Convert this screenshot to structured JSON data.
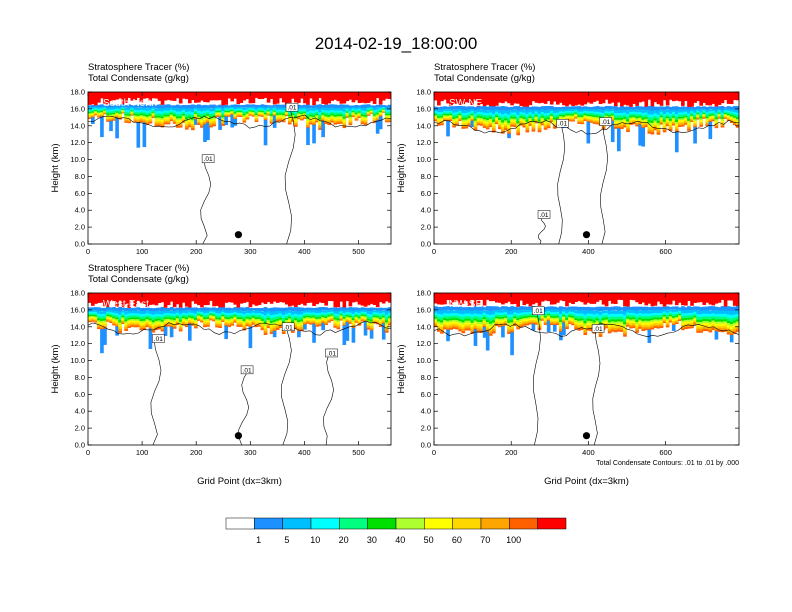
{
  "figure": {
    "title": "2014-02-19_18:00:00",
    "contour_note": "Total Condensate Contours: .01 to .01 by .000"
  },
  "chart_data": [
    {
      "type": "heatmap",
      "subtitle_1": "Stratosphere Tracer   (%)",
      "subtitle_2": "Total Condensate   (g/kg)",
      "region": "South-North",
      "ylabel": "Height (km)",
      "xlabel": "",
      "xlim": [
        0,
        560
      ],
      "ylim": [
        0,
        18
      ],
      "x_ticks": [
        0,
        100,
        200,
        300,
        400,
        500
      ],
      "y_ticks": [
        "0.0",
        "2.0",
        "4.0",
        "6.0",
        "8.0",
        "10.0",
        "12.0",
        "14.0",
        "16.0",
        "18.0"
      ],
      "contour_labels": [
        {
          "text": ".01",
          "x": 377,
          "y": 16.2
        },
        {
          "text": ".01",
          "x": 222,
          "y": 10.1
        }
      ],
      "marker": {
        "x": 278,
        "y": 1.1
      },
      "tracer_base_km": 15.2,
      "dense_top_km": 16.4
    },
    {
      "type": "heatmap",
      "subtitle_1": "Stratosphere Tracer   (%)",
      "subtitle_2": "Total Condensate   (g/kg)",
      "region": "SW-NE",
      "ylabel": "Height (km)",
      "xlabel": "",
      "xlim": [
        0,
        790
      ],
      "ylim": [
        0,
        18
      ],
      "x_ticks": [
        0,
        200,
        400,
        600
      ],
      "y_ticks": [
        "0.0",
        "2.0",
        "4.0",
        "6.0",
        "8.0",
        "10.0",
        "12.0",
        "14.0",
        "16.0",
        "18.0"
      ],
      "contour_labels": [
        {
          "text": ".01",
          "x": 333,
          "y": 14.3
        },
        {
          "text": ".01",
          "x": 445,
          "y": 14.5
        },
        {
          "text": ".01",
          "x": 285,
          "y": 3.5
        }
      ],
      "marker": {
        "x": 395,
        "y": 1.1
      },
      "tracer_base_km": 14.6,
      "dense_top_km": 16.2
    },
    {
      "type": "heatmap",
      "subtitle_1": "Stratosphere Tracer   (%)",
      "subtitle_2": "Total Condensate   (g/kg)",
      "region": "West-East",
      "ylabel": "Height (km)",
      "xlabel": "Grid Point (dx=3km)",
      "xlim": [
        0,
        560
      ],
      "ylim": [
        0,
        18
      ],
      "x_ticks": [
        0,
        100,
        200,
        300,
        400,
        500
      ],
      "y_ticks": [
        "0.0",
        "2.0",
        "4.0",
        "6.0",
        "8.0",
        "10.0",
        "12.0",
        "14.0",
        "16.0",
        "18.0"
      ],
      "contour_labels": [
        {
          "text": ".01",
          "x": 370,
          "y": 14.0
        },
        {
          "text": ".01",
          "x": 130,
          "y": 12.6
        },
        {
          "text": ".01",
          "x": 450,
          "y": 10.9
        },
        {
          "text": ".01",
          "x": 294,
          "y": 8.9
        }
      ],
      "marker": {
        "x": 278,
        "y": 1.1
      },
      "tracer_base_km": 14.6,
      "dense_top_km": 16.2
    },
    {
      "type": "heatmap",
      "subtitle_1": "",
      "subtitle_2": "",
      "region": "NW-SE",
      "ylabel": "Height (km)",
      "xlabel": "Grid Point (dx=3km)",
      "xlim": [
        0,
        790
      ],
      "ylim": [
        0,
        18
      ],
      "x_ticks": [
        0,
        200,
        400,
        600
      ],
      "y_ticks": [
        "0.0",
        "2.0",
        "4.0",
        "6.0",
        "8.0",
        "10.0",
        "12.0",
        "14.0",
        "16.0",
        "18.0"
      ],
      "contour_labels": [
        {
          "text": ".01",
          "x": 270,
          "y": 15.9
        },
        {
          "text": ".01",
          "x": 425,
          "y": 13.8
        }
      ],
      "marker": {
        "x": 395,
        "y": 1.1
      },
      "tracer_base_km": 14.4,
      "dense_top_km": 16.3
    }
  ],
  "colorbar": {
    "colors": [
      "#ffffff",
      "#1e90ff",
      "#00bfff",
      "#00ffff",
      "#00ff7f",
      "#00e000",
      "#adff2f",
      "#ffff00",
      "#ffd700",
      "#ffa500",
      "#ff6000",
      "#ff0000"
    ],
    "labels": [
      "1",
      "5",
      "10",
      "20",
      "30",
      "40",
      "50",
      "60",
      "70",
      "100"
    ]
  }
}
